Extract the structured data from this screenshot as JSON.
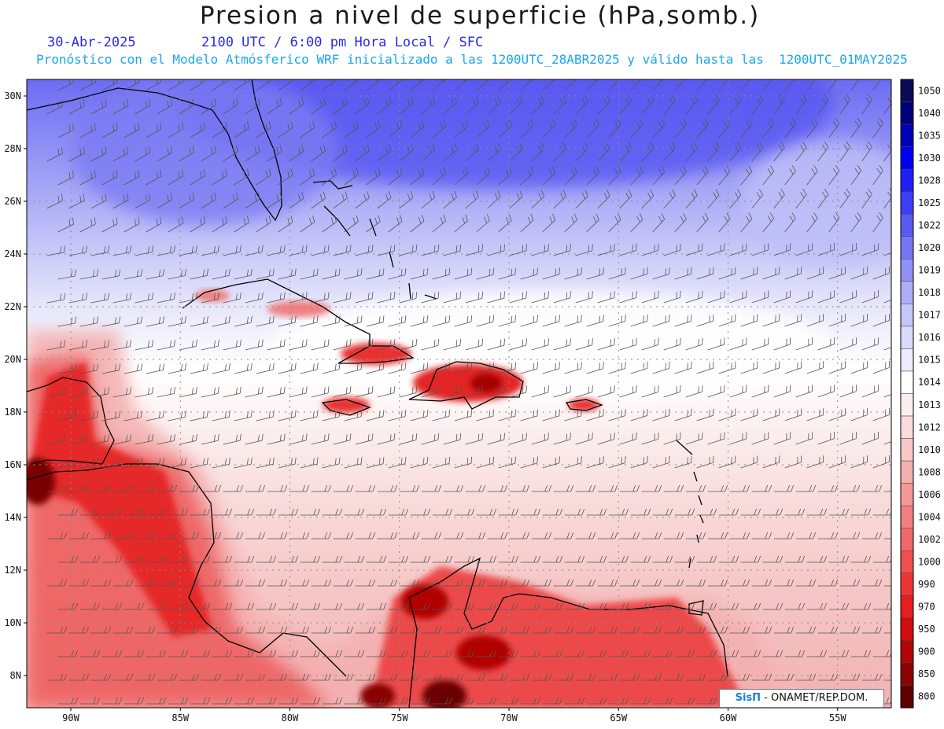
{
  "header": {
    "title": "Presion a nivel de superficie (hPa,somb.)",
    "date": "30-Abr-2025",
    "time_line": "2100 UTC / 6:00 pm Hora Local / SFC",
    "forecast_line": "Pronóstico con el Modelo Atmósferico WRF inicializado a las 1200UTC_28ABR2025 y válido hasta las  1200UTC_01MAY2025"
  },
  "map": {
    "lat_ticks": [
      "30N",
      "28N",
      "26N",
      "24N",
      "22N",
      "20N",
      "18N",
      "16N",
      "14N",
      "12N",
      "10N",
      "8N"
    ],
    "lat_values": [
      30,
      28,
      26,
      24,
      22,
      20,
      18,
      16,
      14,
      12,
      10,
      8
    ],
    "lon_ticks": [
      "90W",
      "85W",
      "80W",
      "75W",
      "70W",
      "65W",
      "60W",
      "55W"
    ],
    "lon_values": [
      -90,
      -85,
      -80,
      -75,
      -70,
      -65,
      -60,
      -55
    ]
  },
  "legend": {
    "levels": [
      "1050",
      "1040",
      "1035",
      "1030",
      "1028",
      "1025",
      "1022",
      "1020",
      "1019",
      "1018",
      "1017",
      "1016",
      "1015",
      "1014",
      "1013",
      "1012",
      "1010",
      "1008",
      "1006",
      "1004",
      "1002",
      "1000",
      "990",
      "970",
      "950",
      "900",
      "850",
      "800"
    ],
    "colors": [
      "#0a0a55",
      "#00007a",
      "#0000b4",
      "#0000f0",
      "#1f1ff5",
      "#3e3ef5",
      "#5a5af5",
      "#7676f5",
      "#9292f5",
      "#aeaef6",
      "#c6c6f8",
      "#dadafa",
      "#ececfc",
      "#ffffff",
      "#fbeeee",
      "#f9dcdc",
      "#f8c8c8",
      "#f4b0b0",
      "#f39898",
      "#f28080",
      "#f06868",
      "#ee5050",
      "#ec3636",
      "#e81e1e",
      "#d00c0c",
      "#b00606",
      "#8a0404",
      "#5c0000"
    ]
  },
  "credit": {
    "logo": "SisΠ",
    "text": " - ONAMET/REP.DOM."
  },
  "colors": {
    "high": "#5a5af5",
    "neutral": "#ffffff",
    "low": "#e81e1e",
    "coast": "#000000"
  }
}
